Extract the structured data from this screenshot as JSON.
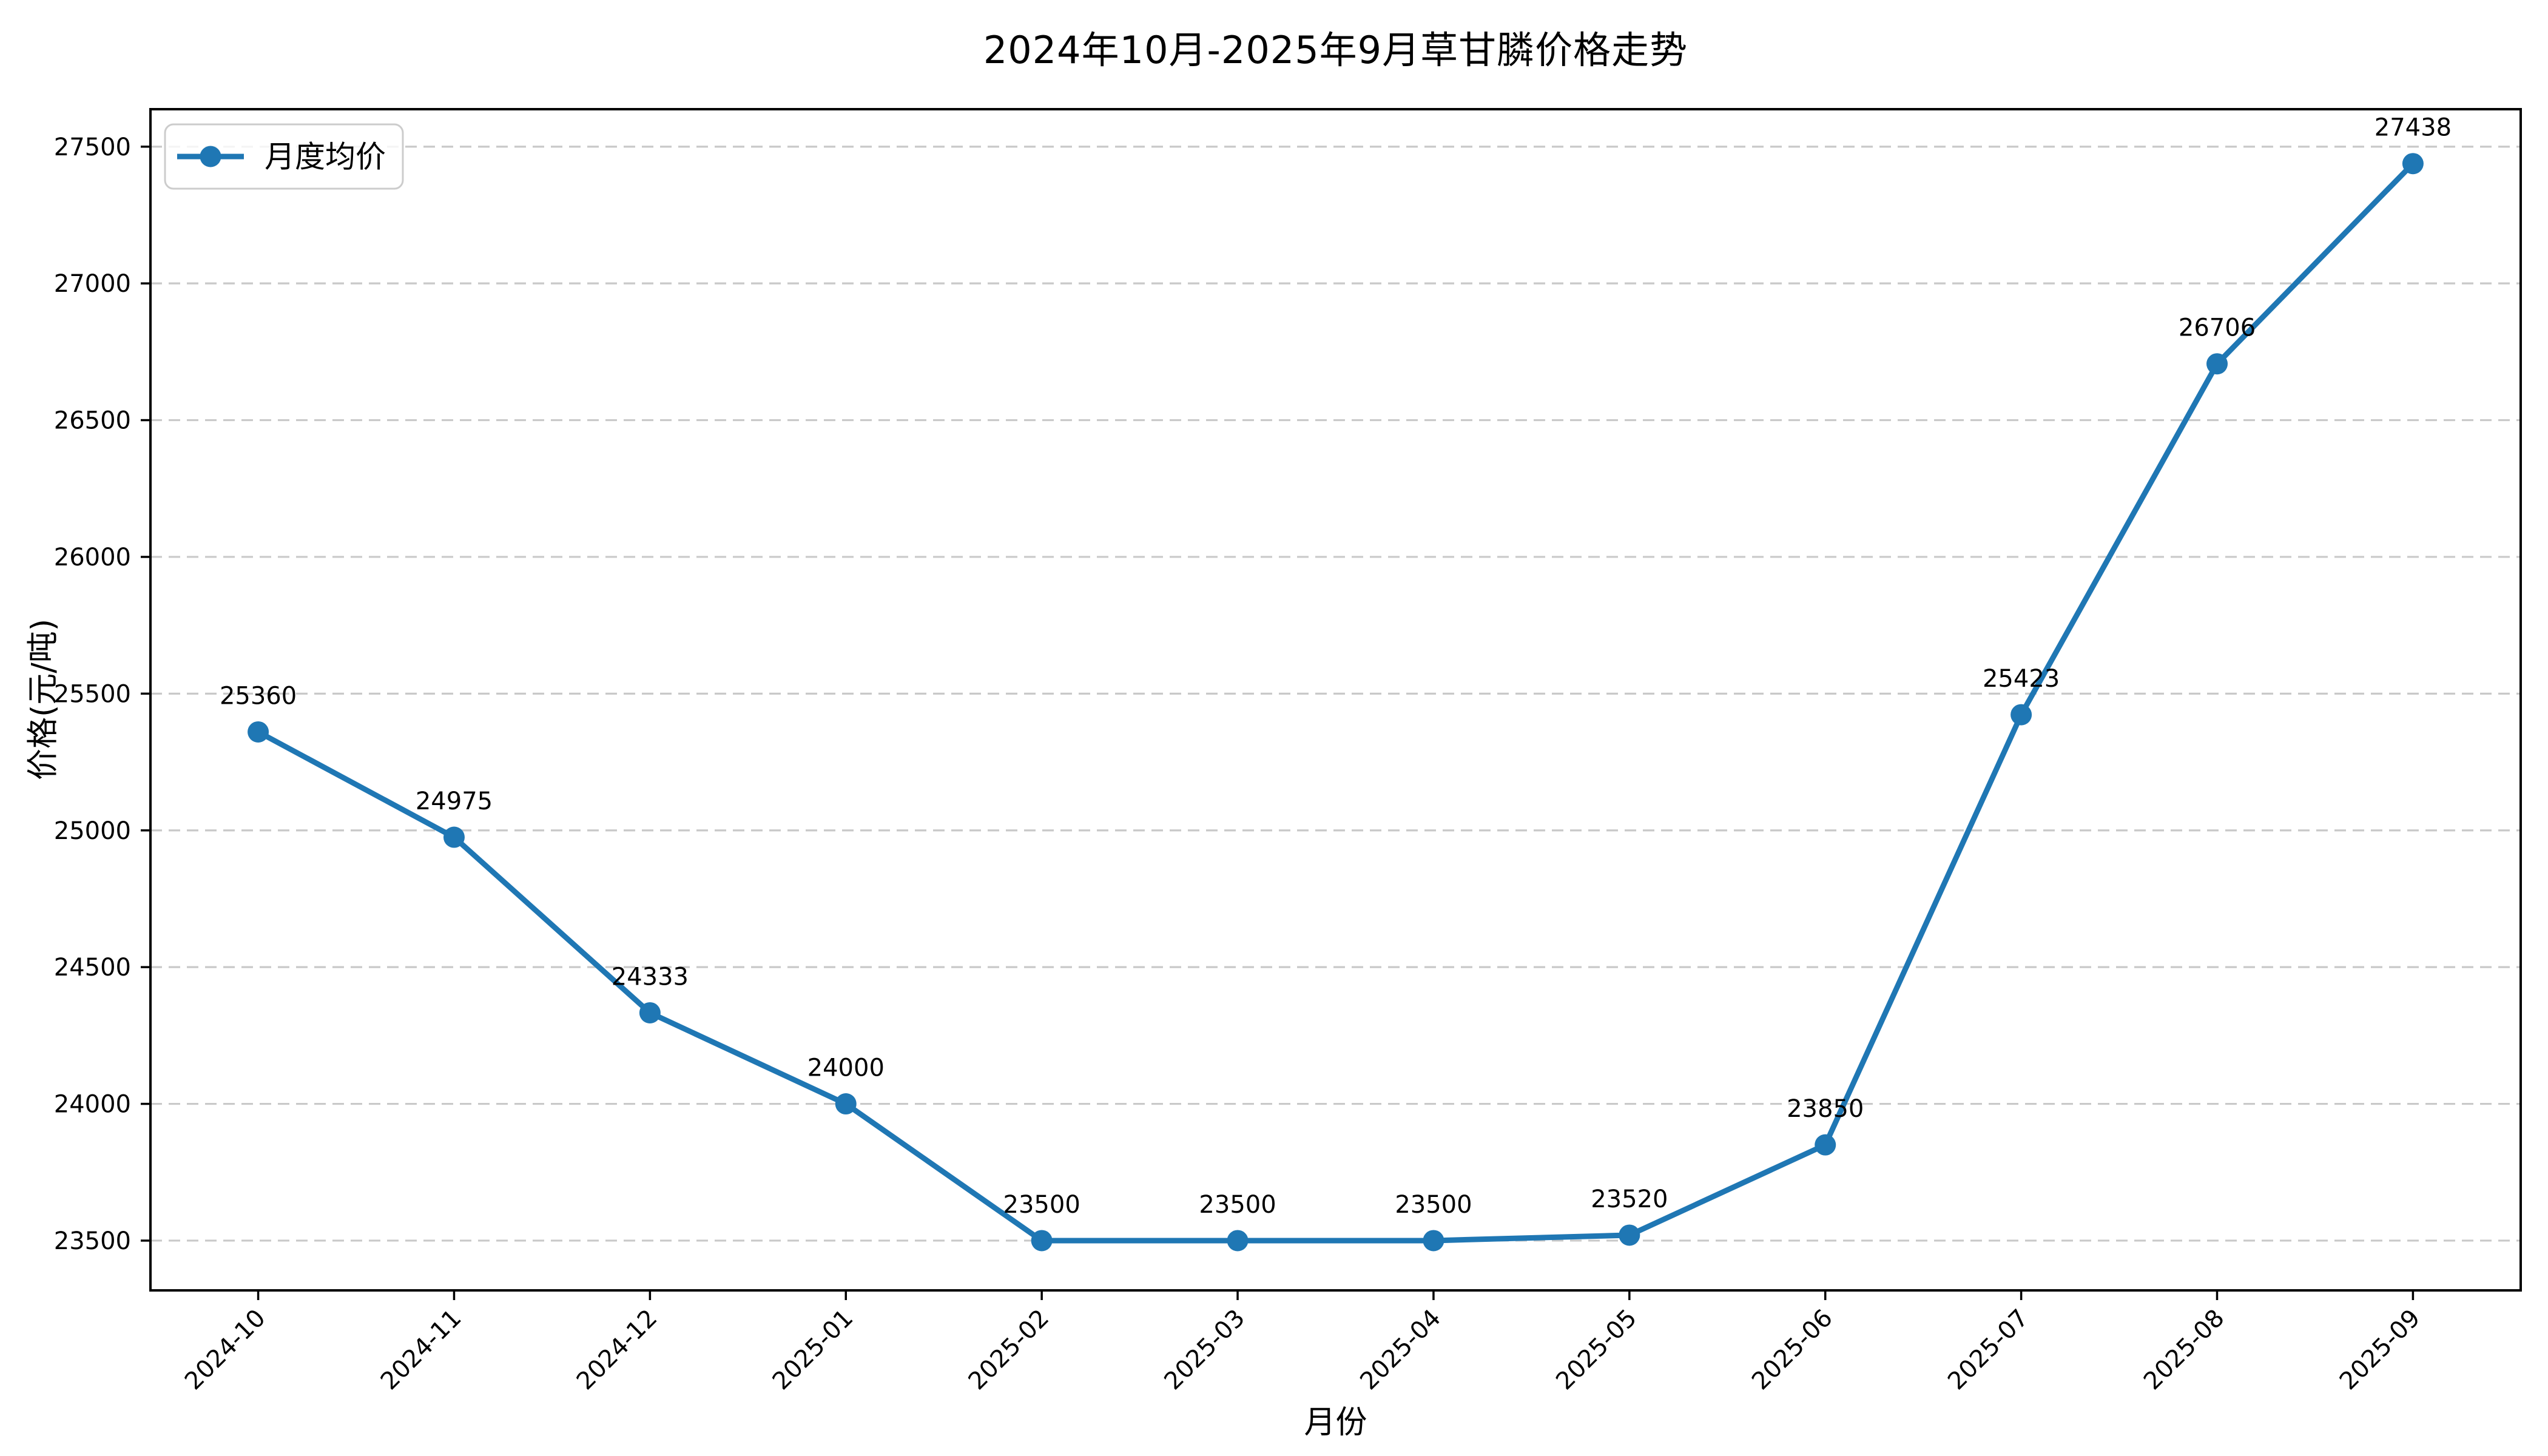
{
  "chart_data": {
    "type": "line",
    "title": "2024年10月-2025年9月草甘膦价格走势",
    "xlabel": "月份",
    "ylabel": "价格(元/吨)",
    "categories": [
      "2024-10",
      "2024-11",
      "2024-12",
      "2025-01",
      "2025-02",
      "2025-03",
      "2025-04",
      "2025-05",
      "2025-06",
      "2025-07",
      "2025-08",
      "2025-09"
    ],
    "series": [
      {
        "name": "月度均价",
        "color": "#1f77b4",
        "marker": "circle",
        "values": [
          25360,
          24975,
          24333,
          24000,
          23500,
          23500,
          23500,
          23520,
          23850,
          25423,
          26706,
          27438
        ]
      }
    ],
    "data_labels": [
      "25360",
      "24975",
      "24333",
      "24000",
      "23500",
      "23500",
      "23500",
      "23520",
      "23850",
      "25423",
      "26706",
      "27438"
    ],
    "yticks": [
      23500,
      24000,
      24500,
      25000,
      25500,
      26000,
      26500,
      27000,
      27500
    ],
    "ylim": [
      23318,
      27637
    ],
    "legend": {
      "label": "月度均价",
      "position": "upper left"
    },
    "grid": {
      "axis": "y",
      "style": "dashed",
      "color": "#c9c9c9"
    },
    "axis_color": "#000000",
    "background": "#ffffff"
  }
}
